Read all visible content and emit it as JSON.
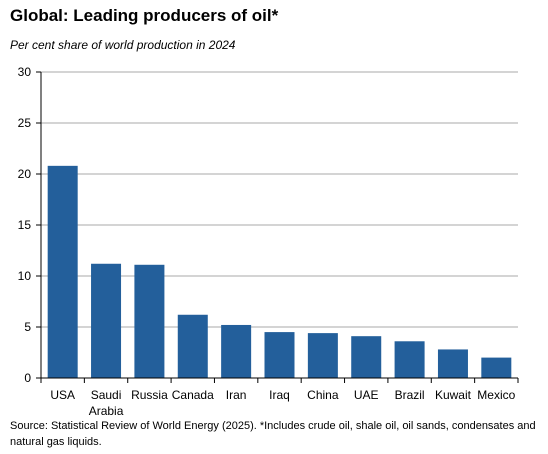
{
  "title": "Global: Leading producers of oil*",
  "subtitle": "Per cent share of world production in 2024",
  "source": "Source: Statistical Review of World Energy (2025). *Includes crude oil, shale oil, oil sands, condensates and natural gas liquids.",
  "colors": {
    "bar": "#235f9b",
    "grid": "#8c8c8c",
    "axis": "#000000"
  },
  "chart_data": {
    "type": "bar",
    "categories": [
      "USA",
      "Saudi Arabia",
      "Russia",
      "Canada",
      "Iran",
      "Iraq",
      "China",
      "UAE",
      "Brazil",
      "Kuwait",
      "Mexico"
    ],
    "category_label_lines": [
      [
        "USA"
      ],
      [
        "Saudi",
        "Arabia"
      ],
      [
        "Russia"
      ],
      [
        "Canada"
      ],
      [
        "Iran"
      ],
      [
        "Iraq"
      ],
      [
        "China"
      ],
      [
        "UAE"
      ],
      [
        "Brazil"
      ],
      [
        "Kuwait"
      ],
      [
        "Mexico"
      ]
    ],
    "values": [
      20.8,
      11.2,
      11.1,
      6.2,
      5.2,
      4.5,
      4.4,
      4.1,
      3.6,
      2.8,
      2.0
    ],
    "yticks": [
      0,
      5,
      10,
      15,
      20,
      25,
      30
    ],
    "ylim": [
      0,
      30
    ],
    "xlabel": "",
    "ylabel": "",
    "grid": true,
    "legend": false
  }
}
